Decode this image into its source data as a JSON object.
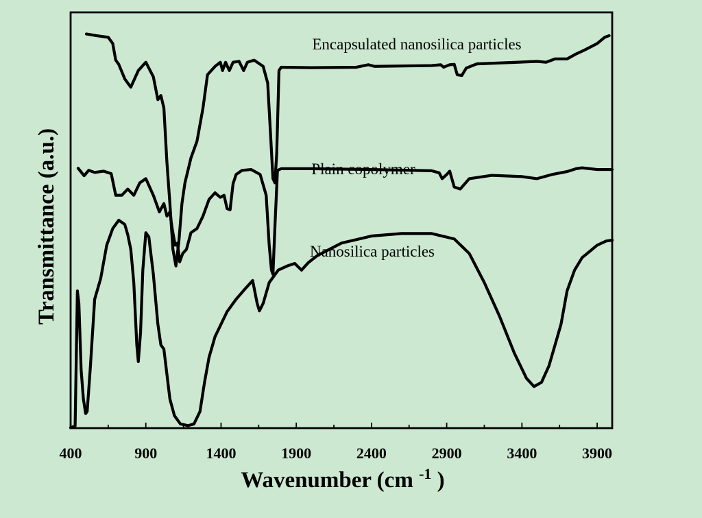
{
  "chart_data": {
    "type": "line",
    "title": "",
    "xlabel": {
      "main": "Wavenumber (cm",
      "superscript": "-1",
      "close": ")"
    },
    "ylabel": "Transmittance (a.u.)",
    "xlim": [
      400,
      4000
    ],
    "ylim": [
      0,
      1
    ],
    "x_ticks": [
      400,
      900,
      1400,
      1900,
      2400,
      2900,
      3400,
      3900
    ],
    "x_tick_labels": [
      "400",
      "900",
      "1400",
      "1900",
      "2400",
      "2900",
      "3400",
      "3900"
    ],
    "y_ticks_visible": false,
    "colors": {
      "background": "#cce8d1",
      "line": "#000000",
      "axis": "#000000"
    },
    "series": [
      {
        "name": "Encapsulated nanosilica particles",
        "label": "Encapsulated nanosilica particles",
        "points": [
          [
            505,
            0.948
          ],
          [
            570,
            0.944
          ],
          [
            650,
            0.94
          ],
          [
            680,
            0.925
          ],
          [
            700,
            0.885
          ],
          [
            720,
            0.875
          ],
          [
            760,
            0.84
          ],
          [
            800,
            0.82
          ],
          [
            850,
            0.86
          ],
          [
            900,
            0.88
          ],
          [
            950,
            0.845
          ],
          [
            980,
            0.79
          ],
          [
            1000,
            0.8
          ],
          [
            1020,
            0.77
          ],
          [
            1040,
            0.64
          ],
          [
            1060,
            0.54
          ],
          [
            1080,
            0.43
          ],
          [
            1100,
            0.39
          ],
          [
            1120,
            0.45
          ],
          [
            1140,
            0.54
          ],
          [
            1160,
            0.59
          ],
          [
            1200,
            0.65
          ],
          [
            1240,
            0.69
          ],
          [
            1280,
            0.77
          ],
          [
            1310,
            0.85
          ],
          [
            1360,
            0.87
          ],
          [
            1395,
            0.88
          ],
          [
            1410,
            0.86
          ],
          [
            1430,
            0.88
          ],
          [
            1455,
            0.86
          ],
          [
            1480,
            0.88
          ],
          [
            1520,
            0.882
          ],
          [
            1550,
            0.86
          ],
          [
            1575,
            0.88
          ],
          [
            1620,
            0.885
          ],
          [
            1680,
            0.87
          ],
          [
            1710,
            0.83
          ],
          [
            1730,
            0.7
          ],
          [
            1745,
            0.6
          ],
          [
            1758,
            0.59
          ],
          [
            1770,
            0.66
          ],
          [
            1785,
            0.86
          ],
          [
            1800,
            0.868
          ],
          [
            2000,
            0.867
          ],
          [
            2300,
            0.868
          ],
          [
            2380,
            0.874
          ],
          [
            2420,
            0.87
          ],
          [
            2800,
            0.872
          ],
          [
            2860,
            0.874
          ],
          [
            2880,
            0.868
          ],
          [
            2920,
            0.874
          ],
          [
            2950,
            0.875
          ],
          [
            2970,
            0.85
          ],
          [
            3000,
            0.848
          ],
          [
            3030,
            0.866
          ],
          [
            3100,
            0.876
          ],
          [
            3500,
            0.882
          ],
          [
            3560,
            0.88
          ],
          [
            3620,
            0.888
          ],
          [
            3700,
            0.888
          ],
          [
            3760,
            0.9
          ],
          [
            3820,
            0.91
          ],
          [
            3900,
            0.925
          ],
          [
            3950,
            0.94
          ],
          [
            3980,
            0.944
          ]
        ]
      },
      {
        "name": "Plain copolymer",
        "label": "Plain copolymer",
        "points": [
          [
            450,
            0.625
          ],
          [
            490,
            0.607
          ],
          [
            520,
            0.62
          ],
          [
            560,
            0.615
          ],
          [
            620,
            0.618
          ],
          [
            670,
            0.612
          ],
          [
            700,
            0.56
          ],
          [
            740,
            0.56
          ],
          [
            780,
            0.575
          ],
          [
            820,
            0.56
          ],
          [
            860,
            0.59
          ],
          [
            900,
            0.6
          ],
          [
            950,
            0.56
          ],
          [
            990,
            0.52
          ],
          [
            1020,
            0.54
          ],
          [
            1040,
            0.51
          ],
          [
            1060,
            0.52
          ],
          [
            1075,
            0.48
          ],
          [
            1095,
            0.44
          ],
          [
            1110,
            0.445
          ],
          [
            1125,
            0.4
          ],
          [
            1145,
            0.42
          ],
          [
            1170,
            0.43
          ],
          [
            1200,
            0.47
          ],
          [
            1240,
            0.48
          ],
          [
            1280,
            0.51
          ],
          [
            1320,
            0.55
          ],
          [
            1360,
            0.566
          ],
          [
            1395,
            0.555
          ],
          [
            1420,
            0.56
          ],
          [
            1440,
            0.528
          ],
          [
            1460,
            0.525
          ],
          [
            1480,
            0.588
          ],
          [
            1500,
            0.61
          ],
          [
            1540,
            0.62
          ],
          [
            1600,
            0.622
          ],
          [
            1660,
            0.61
          ],
          [
            1700,
            0.56
          ],
          [
            1720,
            0.44
          ],
          [
            1735,
            0.38
          ],
          [
            1745,
            0.37
          ],
          [
            1760,
            0.5
          ],
          [
            1775,
            0.62
          ],
          [
            1800,
            0.624
          ],
          [
            2000,
            0.624
          ],
          [
            2400,
            0.622
          ],
          [
            2800,
            0.619
          ],
          [
            2850,
            0.614
          ],
          [
            2870,
            0.6
          ],
          [
            2900,
            0.61
          ],
          [
            2920,
            0.618
          ],
          [
            2950,
            0.58
          ],
          [
            2990,
            0.575
          ],
          [
            3050,
            0.6
          ],
          [
            3200,
            0.608
          ],
          [
            3400,
            0.605
          ],
          [
            3500,
            0.6
          ],
          [
            3600,
            0.61
          ],
          [
            3700,
            0.617
          ],
          [
            3760,
            0.624
          ],
          [
            3800,
            0.626
          ],
          [
            3900,
            0.622
          ],
          [
            4000,
            0.622
          ]
        ]
      },
      {
        "name": "Nanosilica particles",
        "label": "Nanosilica particles",
        "points": [
          [
            400,
            0.001
          ],
          [
            430,
            0.005
          ],
          [
            445,
            0.33
          ],
          [
            455,
            0.3
          ],
          [
            470,
            0.14
          ],
          [
            485,
            0.07
          ],
          [
            500,
            0.035
          ],
          [
            510,
            0.04
          ],
          [
            530,
            0.14
          ],
          [
            560,
            0.31
          ],
          [
            600,
            0.36
          ],
          [
            640,
            0.44
          ],
          [
            680,
            0.48
          ],
          [
            720,
            0.5
          ],
          [
            760,
            0.49
          ],
          [
            780,
            0.465
          ],
          [
            800,
            0.43
          ],
          [
            820,
            0.35
          ],
          [
            840,
            0.2
          ],
          [
            850,
            0.16
          ],
          [
            865,
            0.23
          ],
          [
            880,
            0.38
          ],
          [
            900,
            0.47
          ],
          [
            920,
            0.46
          ],
          [
            950,
            0.37
          ],
          [
            980,
            0.25
          ],
          [
            1000,
            0.2
          ],
          [
            1020,
            0.19
          ],
          [
            1040,
            0.13
          ],
          [
            1060,
            0.07
          ],
          [
            1090,
            0.03
          ],
          [
            1130,
            0.01
          ],
          [
            1180,
            0.006
          ],
          [
            1220,
            0.01
          ],
          [
            1260,
            0.04
          ],
          [
            1290,
            0.11
          ],
          [
            1320,
            0.17
          ],
          [
            1360,
            0.22
          ],
          [
            1400,
            0.25
          ],
          [
            1440,
            0.28
          ],
          [
            1500,
            0.31
          ],
          [
            1560,
            0.335
          ],
          [
            1610,
            0.355
          ],
          [
            1640,
            0.3
          ],
          [
            1655,
            0.282
          ],
          [
            1680,
            0.3
          ],
          [
            1720,
            0.35
          ],
          [
            1780,
            0.38
          ],
          [
            1840,
            0.39
          ],
          [
            1890,
            0.396
          ],
          [
            1935,
            0.38
          ],
          [
            1980,
            0.398
          ],
          [
            2040,
            0.415
          ],
          [
            2200,
            0.445
          ],
          [
            2400,
            0.462
          ],
          [
            2600,
            0.468
          ],
          [
            2800,
            0.468
          ],
          [
            2950,
            0.455
          ],
          [
            3050,
            0.42
          ],
          [
            3150,
            0.35
          ],
          [
            3250,
            0.27
          ],
          [
            3350,
            0.18
          ],
          [
            3430,
            0.12
          ],
          [
            3480,
            0.1
          ],
          [
            3530,
            0.11
          ],
          [
            3580,
            0.15
          ],
          [
            3620,
            0.2
          ],
          [
            3660,
            0.25
          ],
          [
            3700,
            0.33
          ],
          [
            3750,
            0.38
          ],
          [
            3800,
            0.41
          ],
          [
            3850,
            0.425
          ],
          [
            3900,
            0.44
          ],
          [
            3960,
            0.45
          ],
          [
            4000,
            0.452
          ]
        ]
      }
    ]
  }
}
